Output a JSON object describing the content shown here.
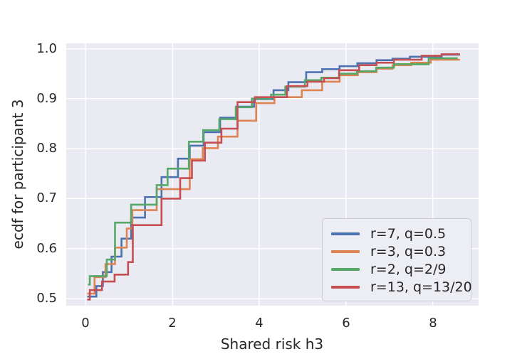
{
  "chart_data": {
    "type": "line",
    "subtype": "ecdf-step",
    "title": "",
    "xlabel": "Shared risk h3",
    "ylabel": "ecdf for participant 3",
    "xlim": [
      -0.443,
      9.05
    ],
    "ylim": [
      0.4858,
      1.0107
    ],
    "grid": true,
    "background": "#eaeaf2",
    "grid_color": "#ffffff",
    "text_color": "#262626",
    "xticks": [
      {
        "v": 0,
        "label": "0"
      },
      {
        "v": 2,
        "label": "2"
      },
      {
        "v": 4,
        "label": "4"
      },
      {
        "v": 6,
        "label": "6"
      },
      {
        "v": 8,
        "label": "8"
      }
    ],
    "yticks": [
      {
        "v": 0.5,
        "label": "0.5"
      },
      {
        "v": 0.6,
        "label": "0.6"
      },
      {
        "v": 0.7,
        "label": "0.7"
      },
      {
        "v": 0.8,
        "label": "0.8"
      },
      {
        "v": 0.9,
        "label": "0.9"
      },
      {
        "v": 1.0,
        "label": "1.0"
      }
    ],
    "legend_position": "lower right",
    "series": [
      {
        "name": "r=7, q=0.5",
        "color": "#4C72B0",
        "points": [
          [
            0.04,
            0.504
          ],
          [
            0.25,
            0.525
          ],
          [
            0.4,
            0.553
          ],
          [
            0.6,
            0.584
          ],
          [
            0.83,
            0.62
          ],
          [
            1.05,
            0.662
          ],
          [
            1.37,
            0.703
          ],
          [
            1.75,
            0.743
          ],
          [
            2.13,
            0.78
          ],
          [
            2.4,
            0.806
          ],
          [
            2.72,
            0.833
          ],
          [
            3.1,
            0.862
          ],
          [
            3.47,
            0.884
          ],
          [
            3.88,
            0.899
          ],
          [
            4.33,
            0.917
          ],
          [
            4.67,
            0.933
          ],
          [
            5.08,
            0.953
          ],
          [
            5.45,
            0.959
          ],
          [
            5.85,
            0.965
          ],
          [
            6.26,
            0.971
          ],
          [
            6.7,
            0.977
          ],
          [
            7.07,
            0.98
          ],
          [
            7.47,
            0.984
          ],
          [
            8.2,
            0.988
          ],
          [
            8.62,
            0.988
          ]
        ]
      },
      {
        "name": "r=3, q=0.3",
        "color": "#DD8452",
        "points": [
          [
            0.04,
            0.51
          ],
          [
            0.21,
            0.543
          ],
          [
            0.46,
            0.569
          ],
          [
            0.68,
            0.602
          ],
          [
            0.95,
            0.64
          ],
          [
            1.08,
            0.677
          ],
          [
            1.64,
            0.719
          ],
          [
            2.4,
            0.779
          ],
          [
            2.7,
            0.801
          ],
          [
            3.05,
            0.824
          ],
          [
            3.5,
            0.856
          ],
          [
            3.93,
            0.891
          ],
          [
            4.35,
            0.903
          ],
          [
            4.98,
            0.917
          ],
          [
            5.45,
            0.934
          ],
          [
            5.85,
            0.947
          ],
          [
            6.27,
            0.953
          ],
          [
            6.7,
            0.96
          ],
          [
            7.07,
            0.967
          ],
          [
            7.5,
            0.972
          ],
          [
            7.95,
            0.978
          ],
          [
            8.62,
            0.978
          ]
        ]
      },
      {
        "name": "r=2, q=2/9",
        "color": "#55A868",
        "points": [
          [
            0.06,
            0.528
          ],
          [
            0.1,
            0.545
          ],
          [
            0.49,
            0.578
          ],
          [
            0.68,
            0.652
          ],
          [
            1.05,
            0.688
          ],
          [
            1.64,
            0.727
          ],
          [
            1.89,
            0.76
          ],
          [
            2.38,
            0.814
          ],
          [
            2.71,
            0.837
          ],
          [
            3.08,
            0.859
          ],
          [
            3.46,
            0.883
          ],
          [
            3.83,
            0.9
          ],
          [
            4.27,
            0.908
          ],
          [
            4.6,
            0.924
          ],
          [
            5.05,
            0.937
          ],
          [
            5.43,
            0.942
          ],
          [
            5.84,
            0.95
          ],
          [
            6.25,
            0.955
          ],
          [
            6.69,
            0.962
          ],
          [
            7.1,
            0.969
          ],
          [
            7.9,
            0.981
          ],
          [
            8.57,
            0.981
          ]
        ]
      },
      {
        "name": "r=13, q=13/20",
        "color": "#C44E52",
        "points": [
          [
            0.04,
            0.498
          ],
          [
            0.1,
            0.517
          ],
          [
            0.38,
            0.534
          ],
          [
            0.67,
            0.548
          ],
          [
            0.98,
            0.573
          ],
          [
            1.09,
            0.647
          ],
          [
            1.75,
            0.7
          ],
          [
            2.18,
            0.741
          ],
          [
            2.45,
            0.776
          ],
          [
            2.75,
            0.812
          ],
          [
            3.13,
            0.84
          ],
          [
            3.5,
            0.893
          ],
          [
            3.9,
            0.903
          ],
          [
            4.64,
            0.925
          ],
          [
            5.11,
            0.934
          ],
          [
            5.49,
            0.941
          ],
          [
            5.84,
            0.957
          ],
          [
            6.3,
            0.967
          ],
          [
            6.7,
            0.972
          ],
          [
            7.1,
            0.978
          ],
          [
            7.74,
            0.986
          ],
          [
            8.2,
            0.989
          ],
          [
            8.62,
            0.989
          ]
        ]
      }
    ]
  }
}
